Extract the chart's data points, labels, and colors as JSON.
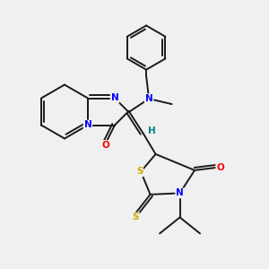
{
  "bg_color": "#f0f0f0",
  "bond_color": "#1a1a1a",
  "bond_width": 1.4,
  "atom_colors": {
    "N": "#0000ff",
    "O": "#ff0000",
    "S": "#ccaa00",
    "H": "#008080",
    "C": "#1a1a1a"
  },
  "figsize": [
    3.0,
    3.0
  ],
  "dpi": 100
}
